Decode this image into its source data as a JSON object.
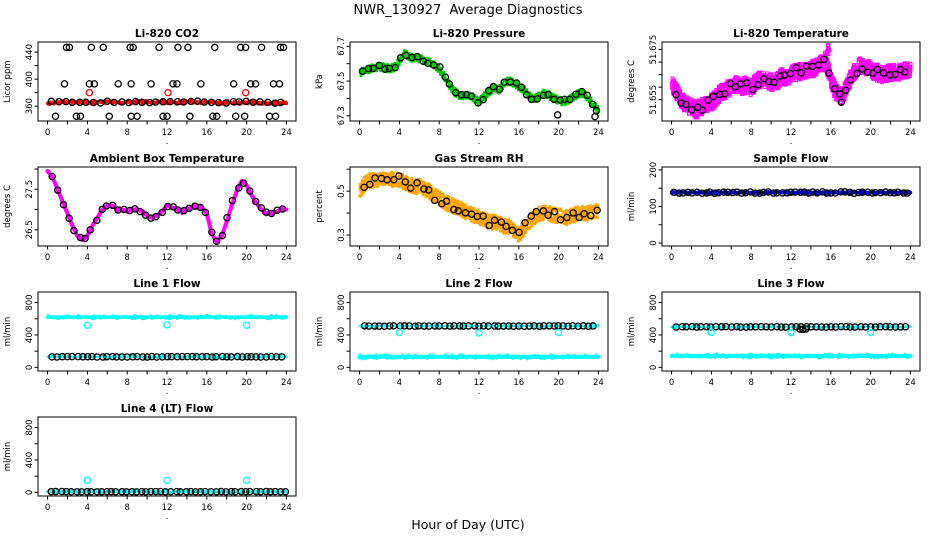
{
  "figure": {
    "main_title": "NWR_130927  Average Diagnostics",
    "xlabel": "Hour of Day (UTC)"
  },
  "axis": {
    "xlim": [
      -0.96,
      24.96
    ],
    "xticks": [
      0,
      2,
      4,
      6,
      8,
      10,
      12,
      14,
      16,
      18,
      20,
      22,
      24
    ],
    "xtick_labels": [
      {
        "v": 0,
        "t": "0"
      },
      {
        "v": 4,
        "t": "4"
      },
      {
        "v": 8,
        "t": "8"
      },
      {
        "v": 12,
        "t": "12"
      },
      {
        "v": 16,
        "t": "16"
      },
      {
        "v": 20,
        "t": "20"
      },
      {
        "v": 24,
        "t": "24"
      }
    ],
    "xlab_dot": "."
  },
  "colors": {
    "red": "#FF0000",
    "green": "#00CC00",
    "magenta": "#FF00FF",
    "orange": "#FFA500",
    "blue": "#0000FF",
    "cyan": "#00FFFF",
    "black": "#000000"
  },
  "chart_data": [
    {
      "slug": "li820-co2",
      "type": "scatter",
      "title": "Li-820 CO2",
      "ylabel": "Licor ppm",
      "ylim": [
        338,
        455
      ],
      "yticks": [
        360,
        380,
        400,
        420,
        440
      ],
      "ytick_labels": [
        {
          "v": 360,
          "t": "360"
        },
        {
          "v": 400,
          "t": "400"
        },
        {
          "v": 440,
          "t": "440"
        }
      ],
      "series": [
        {
          "name": "licor-mean-band",
          "kind": "band",
          "color": "#FF0000",
          "x_start": 0,
          "x_step": 0.5,
          "y": [
            364,
            365,
            366,
            366,
            366,
            367,
            366,
            366,
            366,
            365,
            366,
            366,
            367,
            366,
            366,
            365,
            366,
            366,
            367,
            366,
            366,
            365,
            366,
            367,
            366,
            366,
            365,
            366,
            366,
            367,
            366,
            365,
            366,
            366,
            365,
            365,
            366,
            365,
            364,
            365,
            365,
            366,
            365,
            365,
            364,
            365,
            364,
            364,
            364
          ],
          "jitter": 2.5,
          "density": 320
        },
        {
          "name": "hourly-mean-circles",
          "kind": "circles",
          "color": "#000000",
          "y_const": 366,
          "x_start": 0.4,
          "x_step": 0.7,
          "x_end": 23.9,
          "y_jitter": 1.5
        },
        {
          "name": "cal-high-circles",
          "kind": "circles",
          "color": "#000000",
          "y_const": 447,
          "x": [
            1.9,
            2.2,
            4.4,
            5.6,
            8.3,
            8.6,
            11.2,
            13.1,
            14.1,
            16.8,
            19.4,
            19.9,
            21.5,
            23.4,
            23.7
          ]
        },
        {
          "name": "cal-mid-circles",
          "kind": "circles",
          "color": "#000000",
          "y_const": 393,
          "x": [
            1.7,
            4.2,
            4.7,
            7.1,
            8.4,
            10.4,
            12.6,
            13.0,
            15.4,
            18.7,
            20.4,
            20.9,
            22.7,
            23.3
          ]
        },
        {
          "name": "cal-low-circles",
          "kind": "circles",
          "color": "#000000",
          "y_const": 345,
          "x": [
            0.8,
            2.9,
            3.3,
            6.2,
            8.4,
            9.0,
            11.6,
            12.0,
            14.3,
            16.6,
            17.0,
            18.9,
            19.8,
            22.3,
            22.9
          ]
        },
        {
          "name": "target-circles",
          "kind": "circles",
          "color": "#FF0000",
          "y_const": 380,
          "x": [
            4.2,
            12.1,
            19.9
          ]
        }
      ]
    },
    {
      "slug": "li820-pressure",
      "type": "scatter",
      "title": "Li-820 Pressure",
      "ylabel": "kPa",
      "ylim": [
        67.27,
        67.725
      ],
      "yticks": [
        67.3,
        67.4,
        67.5,
        67.6,
        67.7
      ],
      "ytick_labels": [
        {
          "v": 67.3,
          "t": "67.3"
        },
        {
          "v": 67.5,
          "t": "67.5"
        },
        {
          "v": 67.7,
          "t": "67.7"
        }
      ],
      "series": [
        {
          "name": "pressure-cloud",
          "kind": "cloud",
          "shape": "dot",
          "color": "#00CC00",
          "x_start": 0,
          "x_step": 0.5,
          "y": [
            67.55,
            67.56,
            67.57,
            67.58,
            67.58,
            67.58,
            67.57,
            67.58,
            67.61,
            67.66,
            67.64,
            67.63,
            67.63,
            67.62,
            67.61,
            67.59,
            67.57,
            67.53,
            67.48,
            67.44,
            67.42,
            67.41,
            67.42,
            67.4,
            67.38,
            67.41,
            67.44,
            67.46,
            67.45,
            67.48,
            67.5,
            67.49,
            67.47,
            67.45,
            67.42,
            67.4,
            67.41,
            67.43,
            67.42,
            67.4,
            67.39,
            67.38,
            67.39,
            67.41,
            67.43,
            67.43,
            67.4,
            67.37,
            67.33
          ],
          "jitter": 0.022,
          "density": 1000
        },
        {
          "name": "pressure-hourly-circles",
          "kind": "circles",
          "color": "#000000",
          "follow": 0,
          "x_start": 0.3,
          "x_step": 0.55,
          "x_end": 23.9,
          "y_jitter": 0.013
        },
        {
          "name": "pressure-outlier-circles",
          "kind": "circles",
          "color": "#000000",
          "x": [
            19.9,
            23.65,
            23.8
          ],
          "y": [
            67.305,
            67.295,
            67.33
          ]
        }
      ]
    },
    {
      "slug": "li820-temperature",
      "type": "scatter",
      "title": "Li-820 Temperature",
      "ylabel": "degrees C",
      "ylim": [
        51.6465,
        51.678
      ],
      "yticks": [
        51.655,
        51.66,
        51.665,
        51.67,
        51.675
      ],
      "ytick_labels": [
        {
          "v": 51.655,
          "t": "51.655"
        },
        {
          "v": 51.675,
          "t": "51.675"
        }
      ],
      "series": [
        {
          "name": "temperature-cloud",
          "kind": "cloud",
          "shape": "sq",
          "color": "#FF00FF",
          "x_start": 0,
          "x_step": 0.5,
          "y": [
            51.661,
            51.658,
            51.655,
            51.653,
            51.652,
            51.651,
            51.652,
            51.653,
            51.654,
            51.656,
            51.658,
            51.659,
            51.66,
            51.661,
            51.66,
            51.661,
            51.66,
            51.662,
            51.663,
            51.663,
            51.662,
            51.662,
            51.664,
            51.664,
            51.665,
            51.666,
            51.666,
            51.667,
            51.667,
            51.668,
            51.669,
            51.67,
            51.663,
            51.658,
            51.656,
            51.659,
            51.664,
            51.667,
            51.669,
            51.668,
            51.667,
            51.666,
            51.665,
            51.665,
            51.666,
            51.666,
            51.666,
            51.667,
            51.666
          ],
          "jitter": 0.0032,
          "density": 1400
        },
        {
          "name": "temperature-spike",
          "kind": "cloud",
          "shape": "sq",
          "color": "#FF00FF",
          "x": [
            15.55,
            15.65,
            15.7,
            15.75
          ],
          "y": [
            51.673,
            51.675,
            51.676,
            51.674
          ],
          "jitter": 0.0008,
          "density": 3
        },
        {
          "name": "temperature-hourly-circles",
          "kind": "circles",
          "color": "#000000",
          "follow": 0,
          "x_start": 0.4,
          "x_step": 0.55,
          "x_end": 23.9,
          "y_jitter": 0.0018
        },
        {
          "name": "temperature-low-circle",
          "kind": "circles",
          "color": "#000000",
          "x": [
            17.05
          ],
          "y": [
            51.654
          ]
        }
      ]
    },
    {
      "slug": "ambient-box-temperature",
      "type": "scatter",
      "title": "Ambient Box Temperature",
      "ylabel": "degrees C",
      "ylim": [
        26.1,
        28.05
      ],
      "yticks": [
        26.5,
        27.0,
        27.5,
        28.0
      ],
      "ytick_labels": [
        {
          "v": 26.5,
          "t": "26.5"
        },
        {
          "v": 27.5,
          "t": "27.5"
        }
      ],
      "series": [
        {
          "name": "box-temp-band",
          "kind": "band",
          "color": "#FF00FF",
          "x_start": 0,
          "x_step": 0.5,
          "y": [
            27.95,
            27.8,
            27.5,
            27.2,
            26.9,
            26.6,
            26.35,
            26.25,
            26.35,
            26.6,
            26.8,
            27.0,
            27.1,
            27.1,
            27.0,
            27.0,
            26.95,
            27.0,
            27.0,
            26.95,
            26.85,
            26.8,
            26.85,
            26.95,
            27.1,
            27.05,
            27.0,
            26.95,
            27.0,
            27.05,
            27.1,
            27.05,
            26.9,
            26.4,
            26.2,
            26.35,
            26.7,
            27.1,
            27.45,
            27.7,
            27.6,
            27.35,
            27.15,
            27.0,
            26.9,
            26.9,
            26.95,
            27.0,
            27.0
          ],
          "jitter": 0.05,
          "density": 280
        },
        {
          "name": "box-temp-hourly-circles",
          "kind": "circles",
          "color": "#000000",
          "follow": 0,
          "x_start": 0.5,
          "x_step": 0.55,
          "x_end": 23.8,
          "y_jitter": 0.03
        }
      ]
    },
    {
      "slug": "gas-stream-rh",
      "type": "scatter",
      "title": "Gas Stream RH",
      "ylabel": "percent",
      "ylim": [
        0.25,
        0.61
      ],
      "yticks": [
        0.3,
        0.4,
        0.5,
        0.6
      ],
      "ytick_labels": [
        {
          "v": 0.3,
          "t": "0.3"
        },
        {
          "v": 0.5,
          "t": "0.5"
        }
      ],
      "series": [
        {
          "name": "rh-cloud",
          "kind": "cloud",
          "shape": "dot",
          "color": "#FFA500",
          "x_start": 0,
          "x_step": 0.5,
          "y": [
            0.5,
            0.53,
            0.55,
            0.55,
            0.55,
            0.56,
            0.56,
            0.55,
            0.55,
            0.54,
            0.53,
            0.52,
            0.52,
            0.51,
            0.5,
            0.48,
            0.47,
            0.45,
            0.44,
            0.43,
            0.42,
            0.41,
            0.4,
            0.39,
            0.38,
            0.37,
            0.36,
            0.36,
            0.35,
            0.34,
            0.34,
            0.32,
            0.3,
            0.33,
            0.36,
            0.38,
            0.4,
            0.4,
            0.4,
            0.39,
            0.39,
            0.38,
            0.38,
            0.39,
            0.4,
            0.4,
            0.4,
            0.41,
            0.4
          ],
          "jitter": 0.034,
          "density": 1600
        },
        {
          "name": "rh-hourly-circles",
          "kind": "circles",
          "color": "#000000",
          "follow": 0,
          "x_start": 0.4,
          "x_step": 0.6,
          "x_end": 23.9,
          "y_jitter": 0.02
        }
      ]
    },
    {
      "slug": "sample-flow",
      "type": "scatter",
      "title": "Sample Flow",
      "ylabel": "ml/min",
      "ylim": [
        -8,
        208
      ],
      "yticks": [
        0,
        50,
        100,
        150,
        200
      ],
      "ytick_labels": [
        {
          "v": 0,
          "t": "0"
        },
        {
          "v": 100,
          "t": "100"
        },
        {
          "v": 200,
          "t": "200"
        }
      ],
      "series": [
        {
          "name": "sample-flow-band",
          "kind": "band",
          "color": "#0000FF",
          "y_const": 138,
          "x_start": 0,
          "x_end": 24,
          "jitter": 5,
          "density": 160
        },
        {
          "name": "sample-flow-circles",
          "kind": "circles",
          "color": "#000000",
          "y_const": 138,
          "x_start": 0.3,
          "x_step": 0.45,
          "x_end": 23.9,
          "y_jitter": 2
        }
      ]
    },
    {
      "slug": "line1-flow",
      "type": "scatter",
      "title": "Line 1 Flow",
      "ylabel": "ml/min",
      "ylim": [
        -45,
        930
      ],
      "yticks": [
        0,
        200,
        400,
        600,
        800
      ],
      "ytick_labels": [
        {
          "v": 0,
          "t": "0"
        },
        {
          "v": 400,
          "t": "400"
        },
        {
          "v": 800,
          "t": "800"
        }
      ],
      "series": [
        {
          "name": "line1-high-band",
          "kind": "band",
          "color": "#00FFFF",
          "y_const": 620,
          "x_start": 0,
          "x_end": 24,
          "jitter": 22,
          "density": 160
        },
        {
          "name": "line1-low-band",
          "kind": "band",
          "color": "#00FFFF",
          "y_const": 130,
          "x_start": 0,
          "x_end": 24,
          "jitter": 15,
          "density": 120
        },
        {
          "name": "line1-circles",
          "kind": "circles",
          "color": "#000000",
          "y_const": 130,
          "x_start": 0.5,
          "x_step": 0.5,
          "x_end": 23.8,
          "y_jitter": 3
        },
        {
          "name": "line1-cal-circles",
          "kind": "circles",
          "color": "#00FFFF",
          "x": [
            4,
            12,
            20
          ],
          "y": [
            520,
            525,
            520
          ]
        }
      ]
    },
    {
      "slug": "line2-flow",
      "type": "scatter",
      "title": "Line 2 Flow",
      "ylabel": "ml/min",
      "ylim": [
        -45,
        930
      ],
      "yticks": [
        0,
        200,
        400,
        600,
        800
      ],
      "ytick_labels": [
        {
          "v": 0,
          "t": "0"
        },
        {
          "v": 400,
          "t": "400"
        },
        {
          "v": 800,
          "t": "800"
        }
      ],
      "series": [
        {
          "name": "line2-low-band",
          "kind": "band",
          "color": "#00FFFF",
          "y_const": 130,
          "x_start": 0,
          "x_end": 24,
          "jitter": 25,
          "density": 170
        },
        {
          "name": "line2-high-band",
          "kind": "band",
          "color": "#00FFFF",
          "y_const": 510,
          "x_start": 0,
          "x_end": 24,
          "jitter": 14,
          "density": 120
        },
        {
          "name": "line2-circles",
          "kind": "circles",
          "color": "#000000",
          "y_const": 510,
          "x_start": 0.5,
          "x_step": 0.5,
          "x_end": 23.8,
          "y_jitter": 3
        },
        {
          "name": "line2-cal-circles",
          "kind": "circles",
          "color": "#00FFFF",
          "x": [
            4,
            12,
            20
          ],
          "y": [
            430,
            425,
            430
          ]
        }
      ]
    },
    {
      "slug": "line3-flow",
      "type": "scatter",
      "title": "Line 3 Flow",
      "ylabel": "ml/min",
      "ylim": [
        -45,
        930
      ],
      "yticks": [
        0,
        200,
        400,
        600,
        800
      ],
      "ytick_labels": [
        {
          "v": 0,
          "t": "0"
        },
        {
          "v": 400,
          "t": "400"
        },
        {
          "v": 800,
          "t": "800"
        }
      ],
      "series": [
        {
          "name": "line3-low-band",
          "kind": "band",
          "color": "#00FFFF",
          "y_const": 140,
          "x_start": 0,
          "x_end": 24,
          "jitter": 25,
          "density": 170
        },
        {
          "name": "line3-high-band",
          "kind": "band",
          "color": "#00FFFF",
          "y_const": 500,
          "x_start": 0,
          "x_end": 24,
          "jitter": 13,
          "density": 120
        },
        {
          "name": "line3-circles",
          "kind": "circles",
          "color": "#000000",
          "y_const": 500,
          "x_start": 0.5,
          "x_step": 0.5,
          "x_end": 23.8,
          "y_jitter": 3
        },
        {
          "name": "line3-dip-circles",
          "kind": "circles",
          "color": "#000000",
          "x": [
            12.9,
            13.2,
            13.5
          ],
          "y": [
            472,
            468,
            474
          ]
        },
        {
          "name": "line3-cal-circles",
          "kind": "circles",
          "color": "#00FFFF",
          "x": [
            4,
            12,
            20
          ],
          "y": [
            432,
            428,
            430
          ]
        }
      ]
    },
    {
      "slug": "line4-lt-flow",
      "type": "scatter",
      "title": "Line 4 (LT) Flow",
      "ylabel": "ml/min",
      "ylim": [
        -45,
        930
      ],
      "yticks": [
        0,
        200,
        400,
        600,
        800
      ],
      "ytick_labels": [
        {
          "v": 0,
          "t": "0"
        },
        {
          "v": 400,
          "t": "400"
        },
        {
          "v": 800,
          "t": "800"
        }
      ],
      "series": [
        {
          "name": "line4-zero-band",
          "kind": "band",
          "color": "#00FFFF",
          "y_const": 8,
          "x_start": 0,
          "x_end": 24,
          "jitter": 18,
          "density": 140
        },
        {
          "name": "line4-circles",
          "kind": "circles",
          "color": "#000000",
          "y_const": 8,
          "x_start": 0.4,
          "x_step": 0.5,
          "x_end": 23.9,
          "y_jitter": 2
        },
        {
          "name": "line4-cal-circles",
          "kind": "circles",
          "color": "#00FFFF",
          "x": [
            4,
            12,
            20
          ],
          "y": [
            150,
            148,
            150
          ]
        }
      ]
    }
  ]
}
